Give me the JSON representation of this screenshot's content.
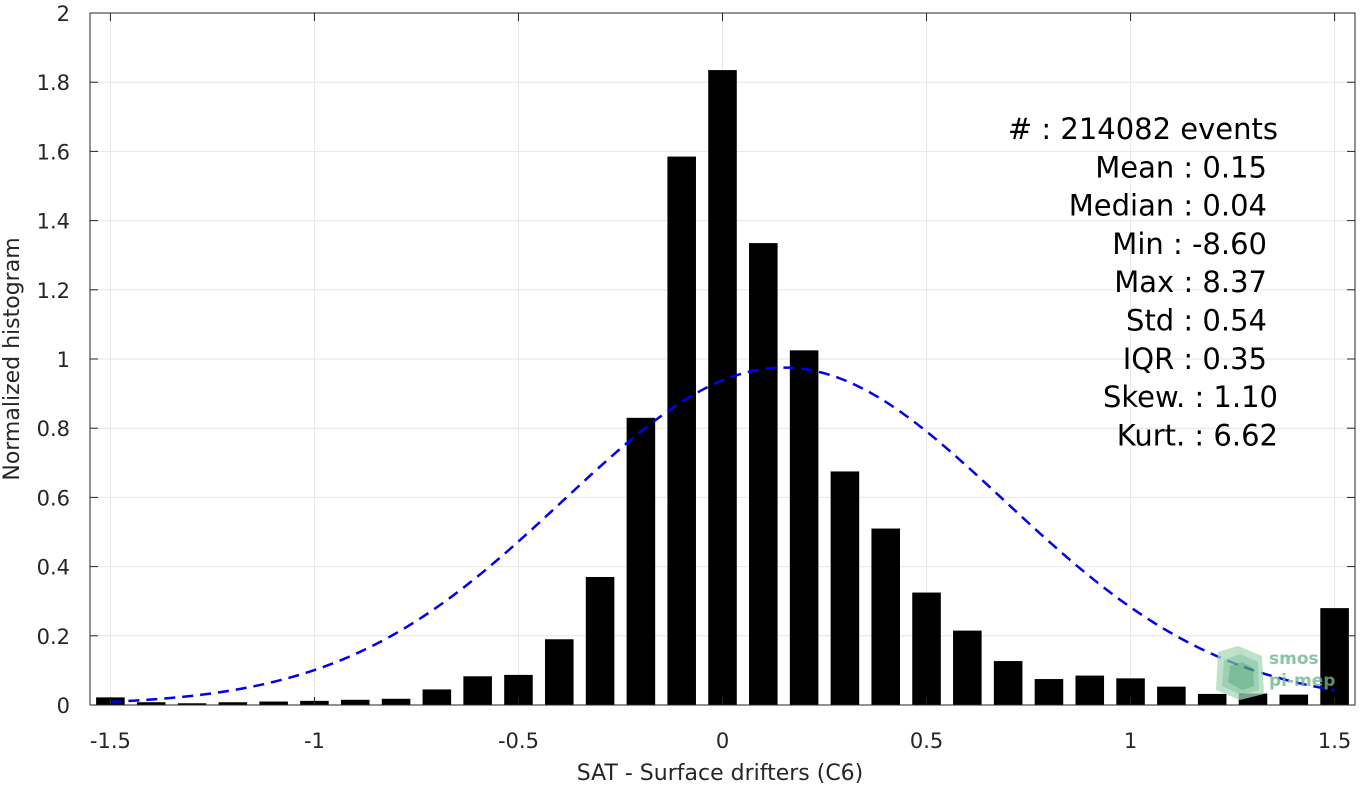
{
  "chart_data": {
    "type": "bar",
    "xlabel": "SAT - Surface drifters (C6)",
    "ylabel": "Normalized histogram",
    "xlim": [
      -1.55,
      1.55
    ],
    "ylim": [
      0,
      2
    ],
    "grid": true,
    "x_ticks": [
      "-1.5",
      "-1",
      "-0.5",
      "0",
      "0.5",
      "1",
      "1.5"
    ],
    "x_tick_values": [
      -1.5,
      -1,
      -0.5,
      0,
      0.5,
      1,
      1.5
    ],
    "y_ticks": [
      "0",
      "0.2",
      "0.4",
      "0.6",
      "0.8",
      "1",
      "1.2",
      "1.4",
      "1.6",
      "1.8",
      "2"
    ],
    "y_tick_values": [
      0,
      0.2,
      0.4,
      0.6,
      0.8,
      1.0,
      1.2,
      1.4,
      1.6,
      1.8,
      2.0
    ],
    "series": [
      {
        "type": "bar",
        "color": "#000000",
        "x": [
          -1.5,
          -1.4,
          -1.3,
          -1.2,
          -1.1,
          -1.0,
          -0.9,
          -0.8,
          -0.7,
          -0.6,
          -0.5,
          -0.4,
          -0.3,
          -0.2,
          -0.1,
          0.0,
          0.1,
          0.2,
          0.3,
          0.4,
          0.5,
          0.6,
          0.7,
          0.8,
          0.9,
          1.0,
          1.1,
          1.2,
          1.3,
          1.4,
          1.5
        ],
        "values": [
          0.022,
          0.008,
          0.005,
          0.008,
          0.01,
          0.012,
          0.015,
          0.018,
          0.045,
          0.083,
          0.087,
          0.19,
          0.37,
          0.83,
          1.585,
          1.835,
          1.335,
          1.025,
          0.675,
          0.51,
          0.325,
          0.215,
          0.127,
          0.075,
          0.085,
          0.077,
          0.053,
          0.032,
          0.033,
          0.03,
          0.28
        ]
      },
      {
        "type": "line",
        "style": "dashed",
        "color": "#0000ee",
        "mean": 0.15,
        "std": 0.54
      }
    ],
    "annotation_lines": [
      "#  : 214082 events",
      "Mean : 0.15",
      "Median : 0.04",
      "Min : -8.60",
      "Max : 8.37",
      "Std : 0.54",
      "IQR : 0.35",
      "Skew. : 1.10",
      "Kurt. : 6.62"
    ]
  },
  "logo": {
    "line1": "smos",
    "line2": "pi-mep",
    "icon": "smos-pimep-logo-icon"
  }
}
